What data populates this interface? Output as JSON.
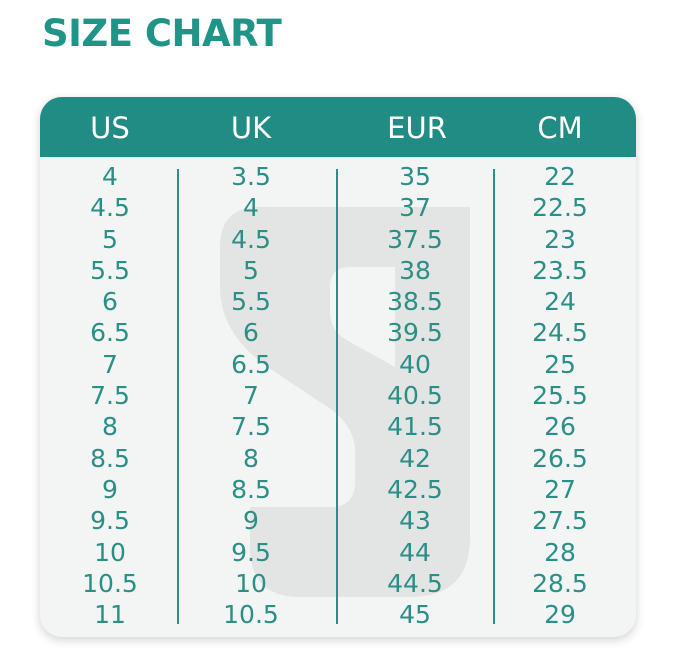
{
  "title": "SIZE CHART",
  "colors": {
    "accent": "#218c83",
    "text": "#2a8f86",
    "card": "#f3f4f4"
  },
  "columns": [
    {
      "header": "US",
      "values": [
        "4",
        "4.5",
        "5",
        "5.5",
        "6",
        "6.5",
        "7",
        "7.5",
        "8",
        "8.5",
        "9",
        "9.5",
        "10",
        "10.5",
        "11"
      ]
    },
    {
      "header": "UK",
      "values": [
        "3.5",
        "4",
        "4.5",
        "5",
        "5.5",
        "6",
        "6.5",
        "7",
        "7.5",
        "8",
        "8.5",
        "9",
        "9.5",
        "10",
        "10.5"
      ]
    },
    {
      "header": "EUR",
      "values": [
        "35",
        "37",
        "37.5",
        "38",
        "38.5",
        "39.5",
        "40",
        "40.5",
        "41.5",
        "42",
        "42.5",
        "43",
        "44",
        "44.5",
        "45"
      ]
    },
    {
      "header": "CM",
      "values": [
        "22",
        "22.5",
        "23",
        "23.5",
        "24",
        "24.5",
        "25",
        "25.5",
        "26",
        "26.5",
        "27",
        "27.5",
        "28",
        "28.5",
        "29"
      ]
    }
  ]
}
